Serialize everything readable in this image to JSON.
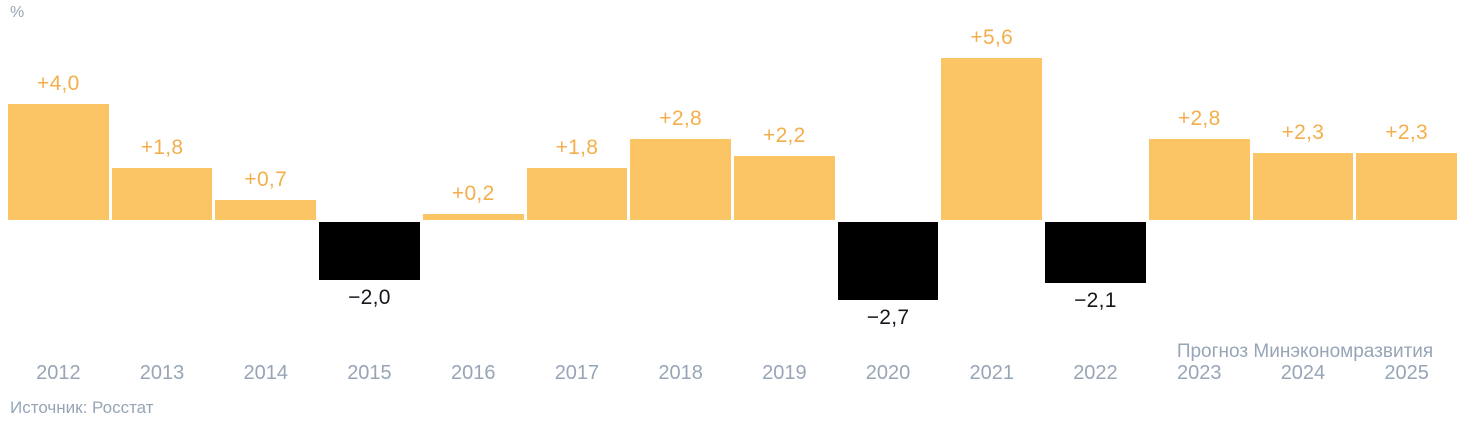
{
  "page": {
    "unit_label": "%",
    "source": "Источник: Росстат",
    "forecast_note": "Прогноз Минэкономразвития"
  },
  "colors": {
    "positive_bar": "#FBC566",
    "negative_bar": "#000000",
    "positive_label": "#F4AE4C",
    "negative_label": "#14181C",
    "axis_text": "#97A5B7"
  },
  "chart_data": {
    "type": "bar",
    "title": "",
    "ylabel": "%",
    "categories": [
      "2012",
      "2013",
      "2014",
      "2015",
      "2016",
      "2017",
      "2018",
      "2019",
      "2020",
      "2021",
      "2022",
      "2023",
      "2024",
      "2025"
    ],
    "values": [
      4.0,
      1.8,
      0.7,
      -2.0,
      0.2,
      1.8,
      2.8,
      2.2,
      -2.7,
      5.6,
      -2.1,
      2.8,
      2.3,
      2.3
    ],
    "value_labels": [
      "+4,0",
      "+1,8",
      "+0,7",
      "−2,0",
      "+0,2",
      "+1,8",
      "+2,8",
      "+2,2",
      "−2,7",
      "+5,6",
      "−2,1",
      "+2,8",
      "+2,3",
      "+2,3"
    ],
    "forecast_categories": [
      "2023",
      "2024",
      "2025"
    ],
    "annotations": [
      "Прогноз Минэкономразвития"
    ],
    "ylim": [
      -3,
      6
    ],
    "grid": false,
    "legend": false
  }
}
